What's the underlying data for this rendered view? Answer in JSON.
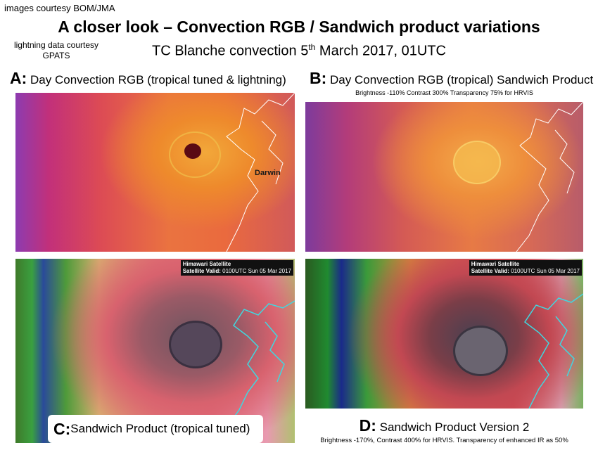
{
  "credit": "images courtesy BOM/JMA",
  "lightning_credit": [
    "lightning data courtesy",
    "GPATS"
  ],
  "title": "A closer look – Convection RGB / Sandwich product variations",
  "subtitle": {
    "before": "TC Blanche convection 5",
    "sup": "th",
    "after": " March 2017, 01UTC"
  },
  "panels": {
    "a": {
      "letter": "A:",
      "text": " Day Convection RGB (tropical tuned & lightning)",
      "place": "Darwin"
    },
    "b": {
      "letter": "B:",
      "text": " Day Convection RGB (tropical) Sandwich Product",
      "note": "Brightness -110% Contrast 300% Transparency 75% for HRVIS"
    },
    "c": {
      "letter": "C:",
      "text": " Sandwich Product (tropical tuned)",
      "banner1": "Himawari Satellite",
      "banner2_bold": "Satellite Valid:",
      "banner2": " 0100UTC Sun 05 Mar 2017"
    },
    "d": {
      "letter": "D:",
      "text": " Sandwich Product Version 2",
      "note": "Brightness -170%, Contrast 400% for HRVIS. Transparency of enhanced IR as 50%",
      "banner1": "Himawari Satellite",
      "banner2_bold": "Satellite Valid:",
      "banner2": " 0100UTC Sun 05 Mar 2017"
    }
  },
  "colors": {
    "coast_white": "#ffffff",
    "coast_cyan": "#3fd8e0",
    "lightning": "#5a0a14"
  }
}
